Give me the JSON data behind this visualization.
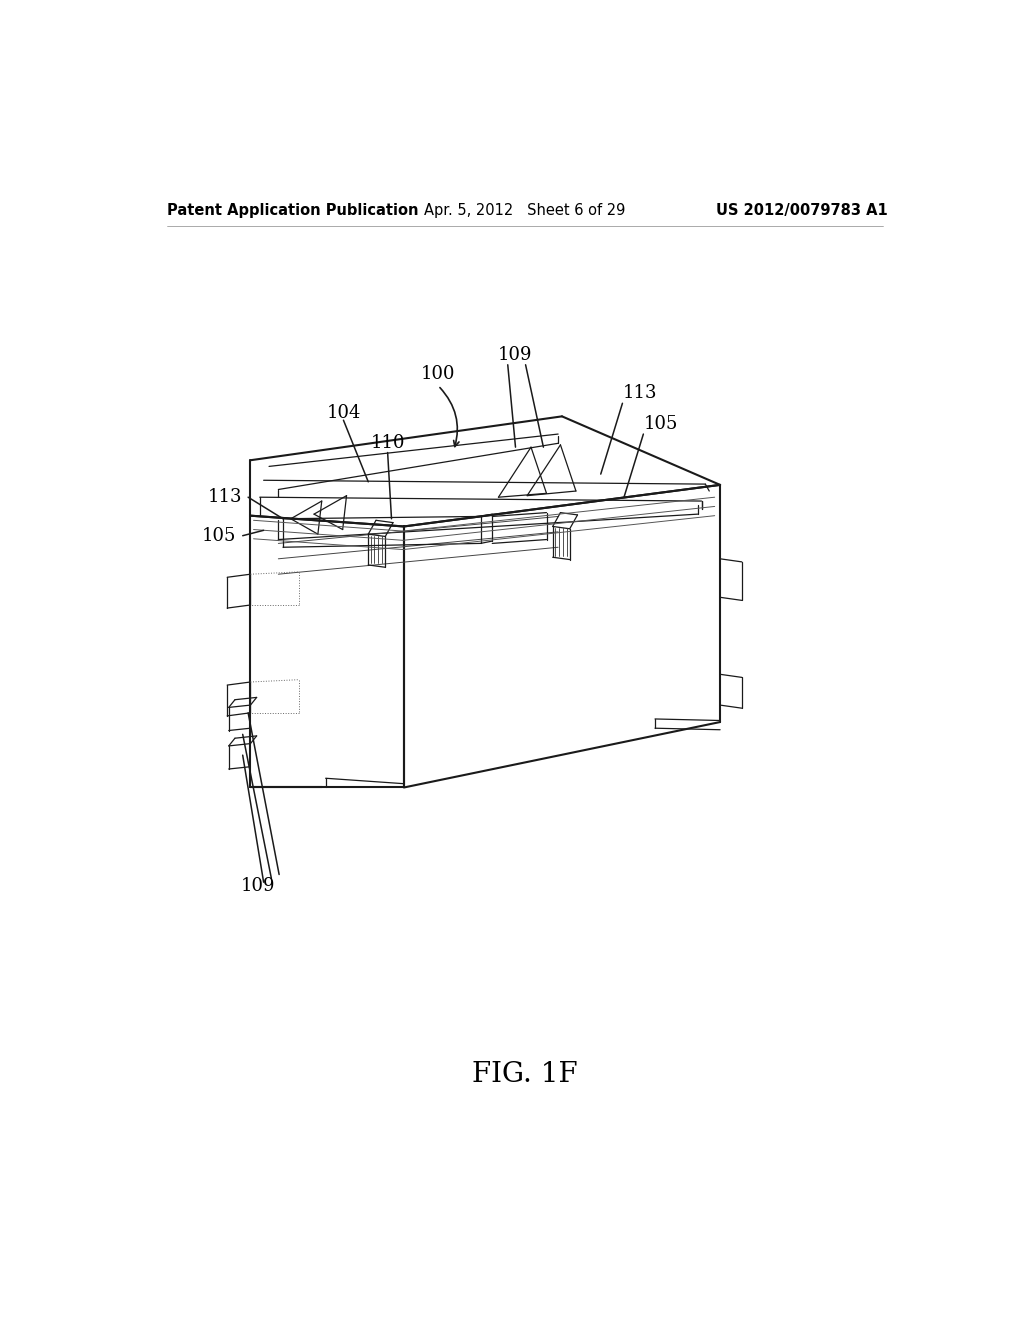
{
  "background_color": "#ffffff",
  "header_left": "Patent Application Publication",
  "header_center": "Apr. 5, 2012   Sheet 6 of 29",
  "header_right": "US 2012/0079783 A1",
  "figure_label": "FIG. 1F",
  "line_color": "#1a1a1a",
  "text_color": "#000000",
  "header_fontsize": 10.5,
  "label_fontsize": 13,
  "fig_label_fontsize": 20
}
